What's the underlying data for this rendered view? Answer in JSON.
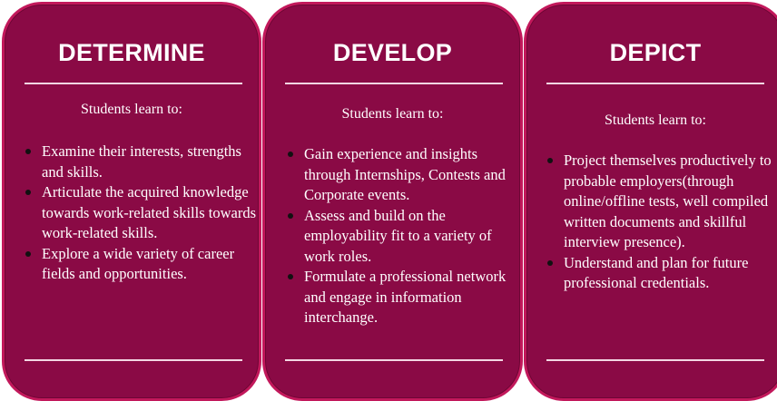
{
  "cards": [
    {
      "title": "DETERMINE",
      "intro": "Students learn to:",
      "items": [
        "Examine their interests, strengths and skills.",
        "Articulate the acquired knowledge towards work-related skills towards work-related skills.",
        "Explore a wide variety of career fields and opportunities."
      ]
    },
    {
      "title": "DEVELOP",
      "intro": "Students learn to:",
      "items": [
        "Gain experience and insights through Internships, Contests and Corporate events.",
        "Assess and build on the employability fit to a variety  of work roles.",
        "Formulate a professional network and engage in information interchange."
      ]
    },
    {
      "title": "DEPICT",
      "intro": "Students learn to:",
      "items": [
        "Project themselves productively to probable employers(through online/offline tests, well compiled written documents and skillful interview presence).",
        "Understand and plan for future professional credentials."
      ]
    }
  ],
  "colors": {
    "card_fill": "#8a0a45",
    "card_border": "#c2185b",
    "text": "#ffffff",
    "divider": "#f3d6e3",
    "bullet": "#111111"
  }
}
